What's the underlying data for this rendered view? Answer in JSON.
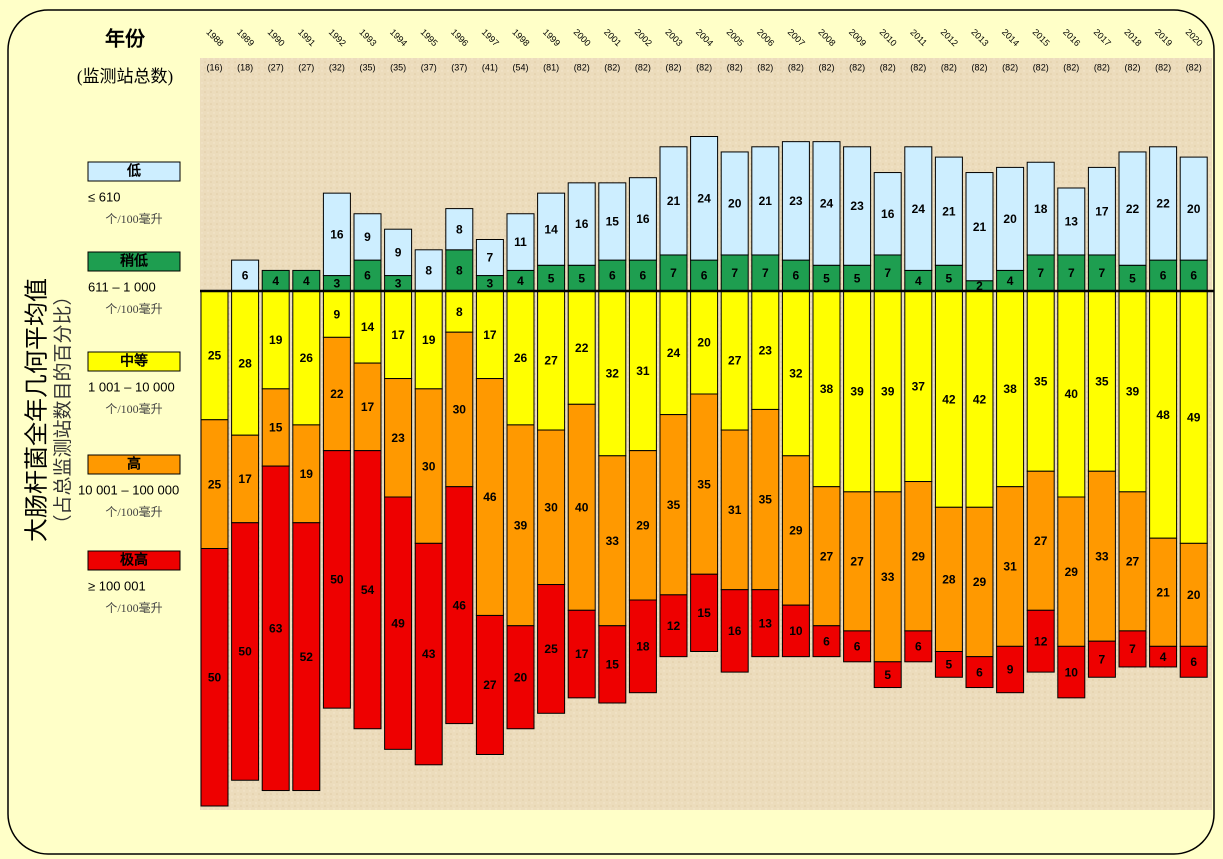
{
  "chart_data": {
    "type": "bar",
    "stacked": true,
    "y_label": "大肠杆菌全年几何平均值",
    "y_sublabel": "（占总监测站数目的百分比）",
    "categories_label": "年份",
    "counts_label": "(监测站总数)",
    "categories": [
      "1988",
      "1989",
      "1990",
      "1991",
      "1992",
      "1993",
      "1994",
      "1995",
      "1996",
      "1997",
      "1998",
      "1999",
      "2000",
      "2001",
      "2002",
      "2003",
      "2004",
      "2005",
      "2006",
      "2007",
      "2008",
      "2009",
      "2010",
      "2011",
      "2012",
      "2013",
      "2014",
      "2015",
      "2016",
      "2017",
      "2018",
      "2019",
      "2020"
    ],
    "counts": [
      "(16)",
      "(18)",
      "(27)",
      "(27)",
      "(32)",
      "(35)",
      "(35)",
      "(37)",
      "(37)",
      "(41)",
      "(54)",
      "(81)",
      "(82)",
      "(82)",
      "(82)",
      "(82)",
      "(82)",
      "(82)",
      "(82)",
      "(82)",
      "(82)",
      "(82)",
      "(82)",
      "(82)",
      "(82)",
      "(82)",
      "(82)",
      "(82)",
      "(82)",
      "(82)",
      "(82)",
      "(82)",
      "(82)"
    ],
    "series": [
      {
        "name": "低",
        "range": "≤ 610",
        "unit": "个/100毫升",
        "side": "up",
        "color": "#cdeeff",
        "values": [
          null,
          6,
          null,
          null,
          16,
          9,
          9,
          8,
          8,
          7,
          11,
          14,
          16,
          15,
          16,
          21,
          24,
          20,
          21,
          23,
          24,
          23,
          16,
          24,
          21,
          21,
          20,
          18,
          13,
          17,
          22,
          22,
          20
        ]
      },
      {
        "name": "稍低",
        "range": "611 – 1 000",
        "unit": "个/100毫升",
        "side": "up",
        "color": "#1e9e50",
        "values": [
          null,
          null,
          4,
          4,
          3,
          6,
          3,
          null,
          8,
          3,
          4,
          5,
          5,
          6,
          6,
          7,
          6,
          7,
          7,
          6,
          5,
          5,
          7,
          4,
          5,
          2,
          4,
          7,
          7,
          7,
          5,
          6,
          6
        ]
      },
      {
        "name": "中等",
        "range": "1 001 – 10 000",
        "unit": "个/100毫升",
        "side": "down",
        "color": "#ffff00",
        "values": [
          25,
          28,
          19,
          26,
          9,
          14,
          17,
          19,
          8,
          17,
          26,
          27,
          22,
          32,
          31,
          24,
          20,
          27,
          23,
          32,
          38,
          39,
          39,
          37,
          42,
          42,
          38,
          35,
          40,
          35,
          39,
          48,
          49
        ]
      },
      {
        "name": "高",
        "range": "10 001 – 100 000",
        "unit": "个/100毫升",
        "side": "down",
        "color": "#ff9900",
        "values": [
          25,
          17,
          15,
          19,
          22,
          17,
          23,
          30,
          30,
          46,
          39,
          30,
          40,
          33,
          29,
          35,
          35,
          31,
          35,
          29,
          27,
          27,
          33,
          29,
          28,
          29,
          31,
          27,
          29,
          33,
          27,
          21,
          20
        ]
      },
      {
        "name": "极高",
        "range": "≥ 100 001",
        "unit": "个/100毫升",
        "side": "down",
        "color": "#ee0000",
        "values": [
          50,
          50,
          63,
          52,
          50,
          54,
          49,
          43,
          46,
          27,
          20,
          25,
          17,
          15,
          18,
          12,
          15,
          16,
          13,
          10,
          6,
          6,
          5,
          6,
          5,
          6,
          9,
          12,
          10,
          7,
          7,
          4,
          6
        ]
      }
    ]
  }
}
